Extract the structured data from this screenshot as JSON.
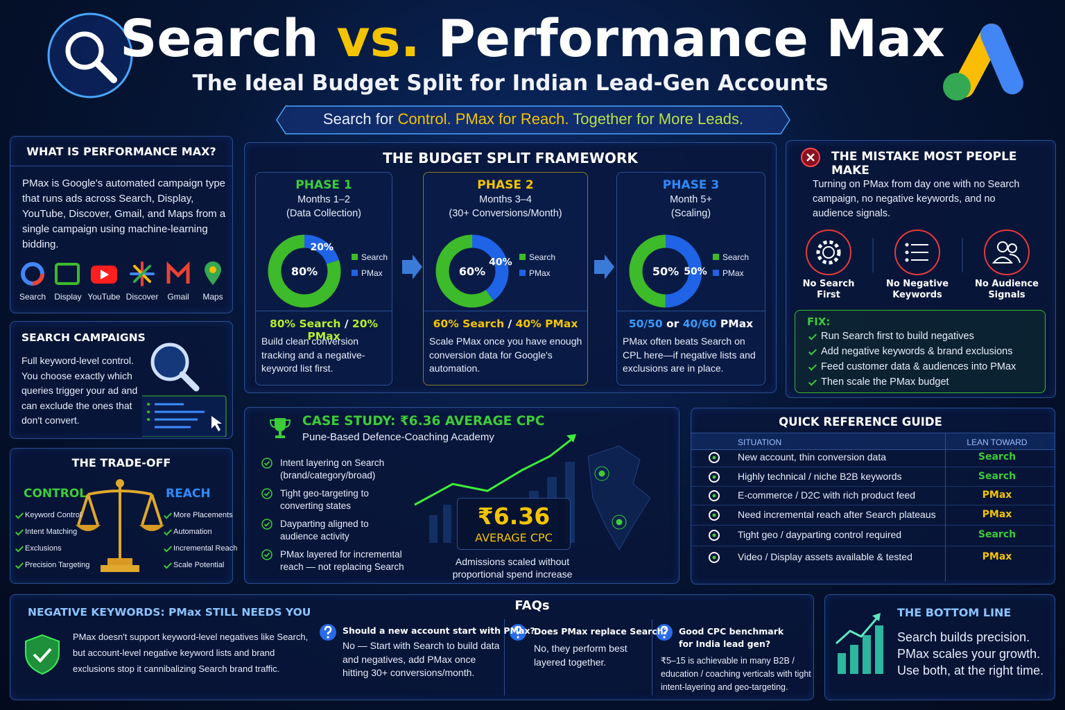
{
  "header": {
    "title_a": "Search",
    "title_vs": "vs.",
    "title_b": "Performance Max",
    "subtitle": "The Ideal Budget Split for Indian Lead-Gen Accounts",
    "tagline": [
      "Search for ",
      "Control.",
      " PMax for ",
      "Reach.",
      " Together for More Leads."
    ]
  },
  "what_is_pmax": {
    "title": "WHAT IS PERFORMANCE MAX?",
    "body": "PMax is Google's automated campaign type that runs ads across Search, Display, YouTube, Discover, Gmail, and Maps from a single campaign using machine-learning bidding.",
    "channels": [
      "Search",
      "Display",
      "YouTube",
      "Discover",
      "Gmail",
      "Maps"
    ]
  },
  "search_campaigns": {
    "title": "SEARCH CAMPAIGNS",
    "body": "Full keyword-level control. You choose exactly which queries trigger your ad and can exclude the ones that don't convert."
  },
  "tradeoff": {
    "title": "THE TRADE-OFF",
    "control_label": "CONTROL",
    "reach_label": "REACH",
    "control_items": [
      "Keyword Control",
      "Intent Matching",
      "Exclusions",
      "Precision Targeting"
    ],
    "reach_items": [
      "More Placements",
      "Automation",
      "Incremental Reach",
      "Scale Potential"
    ]
  },
  "framework": {
    "title": "THE BUDGET SPLIT FRAMEWORK",
    "phases": [
      {
        "name": "PHASE 1",
        "months": "Months 1–2",
        "note": "(Data Collection)",
        "summary": [
          "80% Search",
          " / ",
          "20% PMax"
        ],
        "body": "Build clean conversion tracking and a negative-keyword list first."
      },
      {
        "name": "PHASE 2",
        "months": "Months 3–4",
        "note": "(30+ Conversions/Month)",
        "summary": [
          "60% Search",
          " / ",
          "40% PMax"
        ],
        "body": "Scale PMax once you have enough conversion data for Google's automation."
      },
      {
        "name": "PHASE 3",
        "months": "Month 5+",
        "note": "(Scaling)",
        "summary": [
          "50/50",
          " or ",
          "40/60",
          " PMax"
        ],
        "body": "PMax often beats Search on CPL here—if negative lists and exclusions are in place."
      }
    ]
  },
  "chart_data": [
    {
      "type": "pie",
      "categories": [
        "Search",
        "PMax"
      ],
      "values": [
        80,
        20
      ],
      "value_labels": [
        "80%",
        "20%"
      ],
      "colors": [
        "#3dbb2a",
        "#1f63e6"
      ]
    },
    {
      "type": "pie",
      "categories": [
        "Search",
        "PMax"
      ],
      "values": [
        60,
        40
      ],
      "value_labels": [
        "60%",
        "40%"
      ],
      "colors": [
        "#3dbb2a",
        "#1f63e6"
      ]
    },
    {
      "type": "pie",
      "categories": [
        "Search",
        "PMax"
      ],
      "values": [
        50,
        50
      ],
      "value_labels": [
        "50%",
        "50%"
      ],
      "colors": [
        "#3dbb2a",
        "#1f63e6"
      ]
    }
  ],
  "mistake": {
    "title": "THE MISTAKE MOST PEOPLE MAKE",
    "body": "Turning on PMax from day one with no Search campaign, no negative keywords, and no audience signals.",
    "items": [
      "No Search First",
      "No Negative Keywords",
      "No Audience Signals"
    ],
    "fix_title": "FIX:",
    "fixes": [
      "Run Search first to build negatives",
      "Add negative keywords & brand exclusions",
      "Feed customer data & audiences into PMax",
      "Then scale the PMax budget"
    ]
  },
  "case_study": {
    "title": "CASE STUDY: ₹6.36 AVERAGE CPC",
    "subtitle": "Pune-Based Defence-Coaching Academy",
    "points": [
      "Intent layering on Search (brand/category/broad)",
      "Tight geo-targeting to converting states",
      "Dayparting aligned to audience activity",
      "PMax layered for incremental reach — not replacing Search"
    ],
    "big_value": "₹6.36",
    "big_label": "AVERAGE CPC",
    "caption": "Admissions scaled without proportional spend increase"
  },
  "quick_ref": {
    "title": "QUICK REFERENCE GUIDE",
    "headers": [
      "SITUATION",
      "LEAN TOWARD"
    ],
    "rows": [
      {
        "situation": "New account, thin conversion data",
        "lean": "Search",
        "color": "#3dcc3a"
      },
      {
        "situation": "Highly technical / niche B2B keywords",
        "lean": "Search",
        "color": "#3dcc3a"
      },
      {
        "situation": "E-commerce / D2C with rich product feed",
        "lean": "PMax",
        "color": "#f5c400"
      },
      {
        "situation": "Need incremental reach after Search plateaus",
        "lean": "PMax",
        "color": "#f5c400"
      },
      {
        "situation": "Tight geo / dayparting control required",
        "lean": "Search",
        "color": "#3dcc3a"
      },
      {
        "situation": "Video / Display assets available & tested",
        "lean": "PMax",
        "color": "#f5c400"
      }
    ]
  },
  "negatives": {
    "title": "NEGATIVE KEYWORDS: PMax STILL NEEDS YOU",
    "body": "PMax doesn't support keyword-level negatives like Search, but account-level negative keyword lists and brand exclusions stop it cannibalizing Search brand traffic."
  },
  "faqs": {
    "title": "FAQs",
    "items": [
      {
        "q": "Should a new account start with PMax?",
        "a": "No — Start with Search to build data and negatives, add PMax once hitting 30+ conversions/month."
      },
      {
        "q": "Does PMax replace Search?",
        "a": "No, they perform best layered together."
      },
      {
        "q": "Good CPC benchmark for India lead gen?",
        "a": "₹5–15 is achievable in many B2B / education / coaching verticals with tight intent-layering and geo-targeting."
      }
    ]
  },
  "bottom_line": {
    "title": "THE BOTTOM LINE",
    "body": "Search builds precision. PMax scales your growth. Use both, at the right time."
  }
}
